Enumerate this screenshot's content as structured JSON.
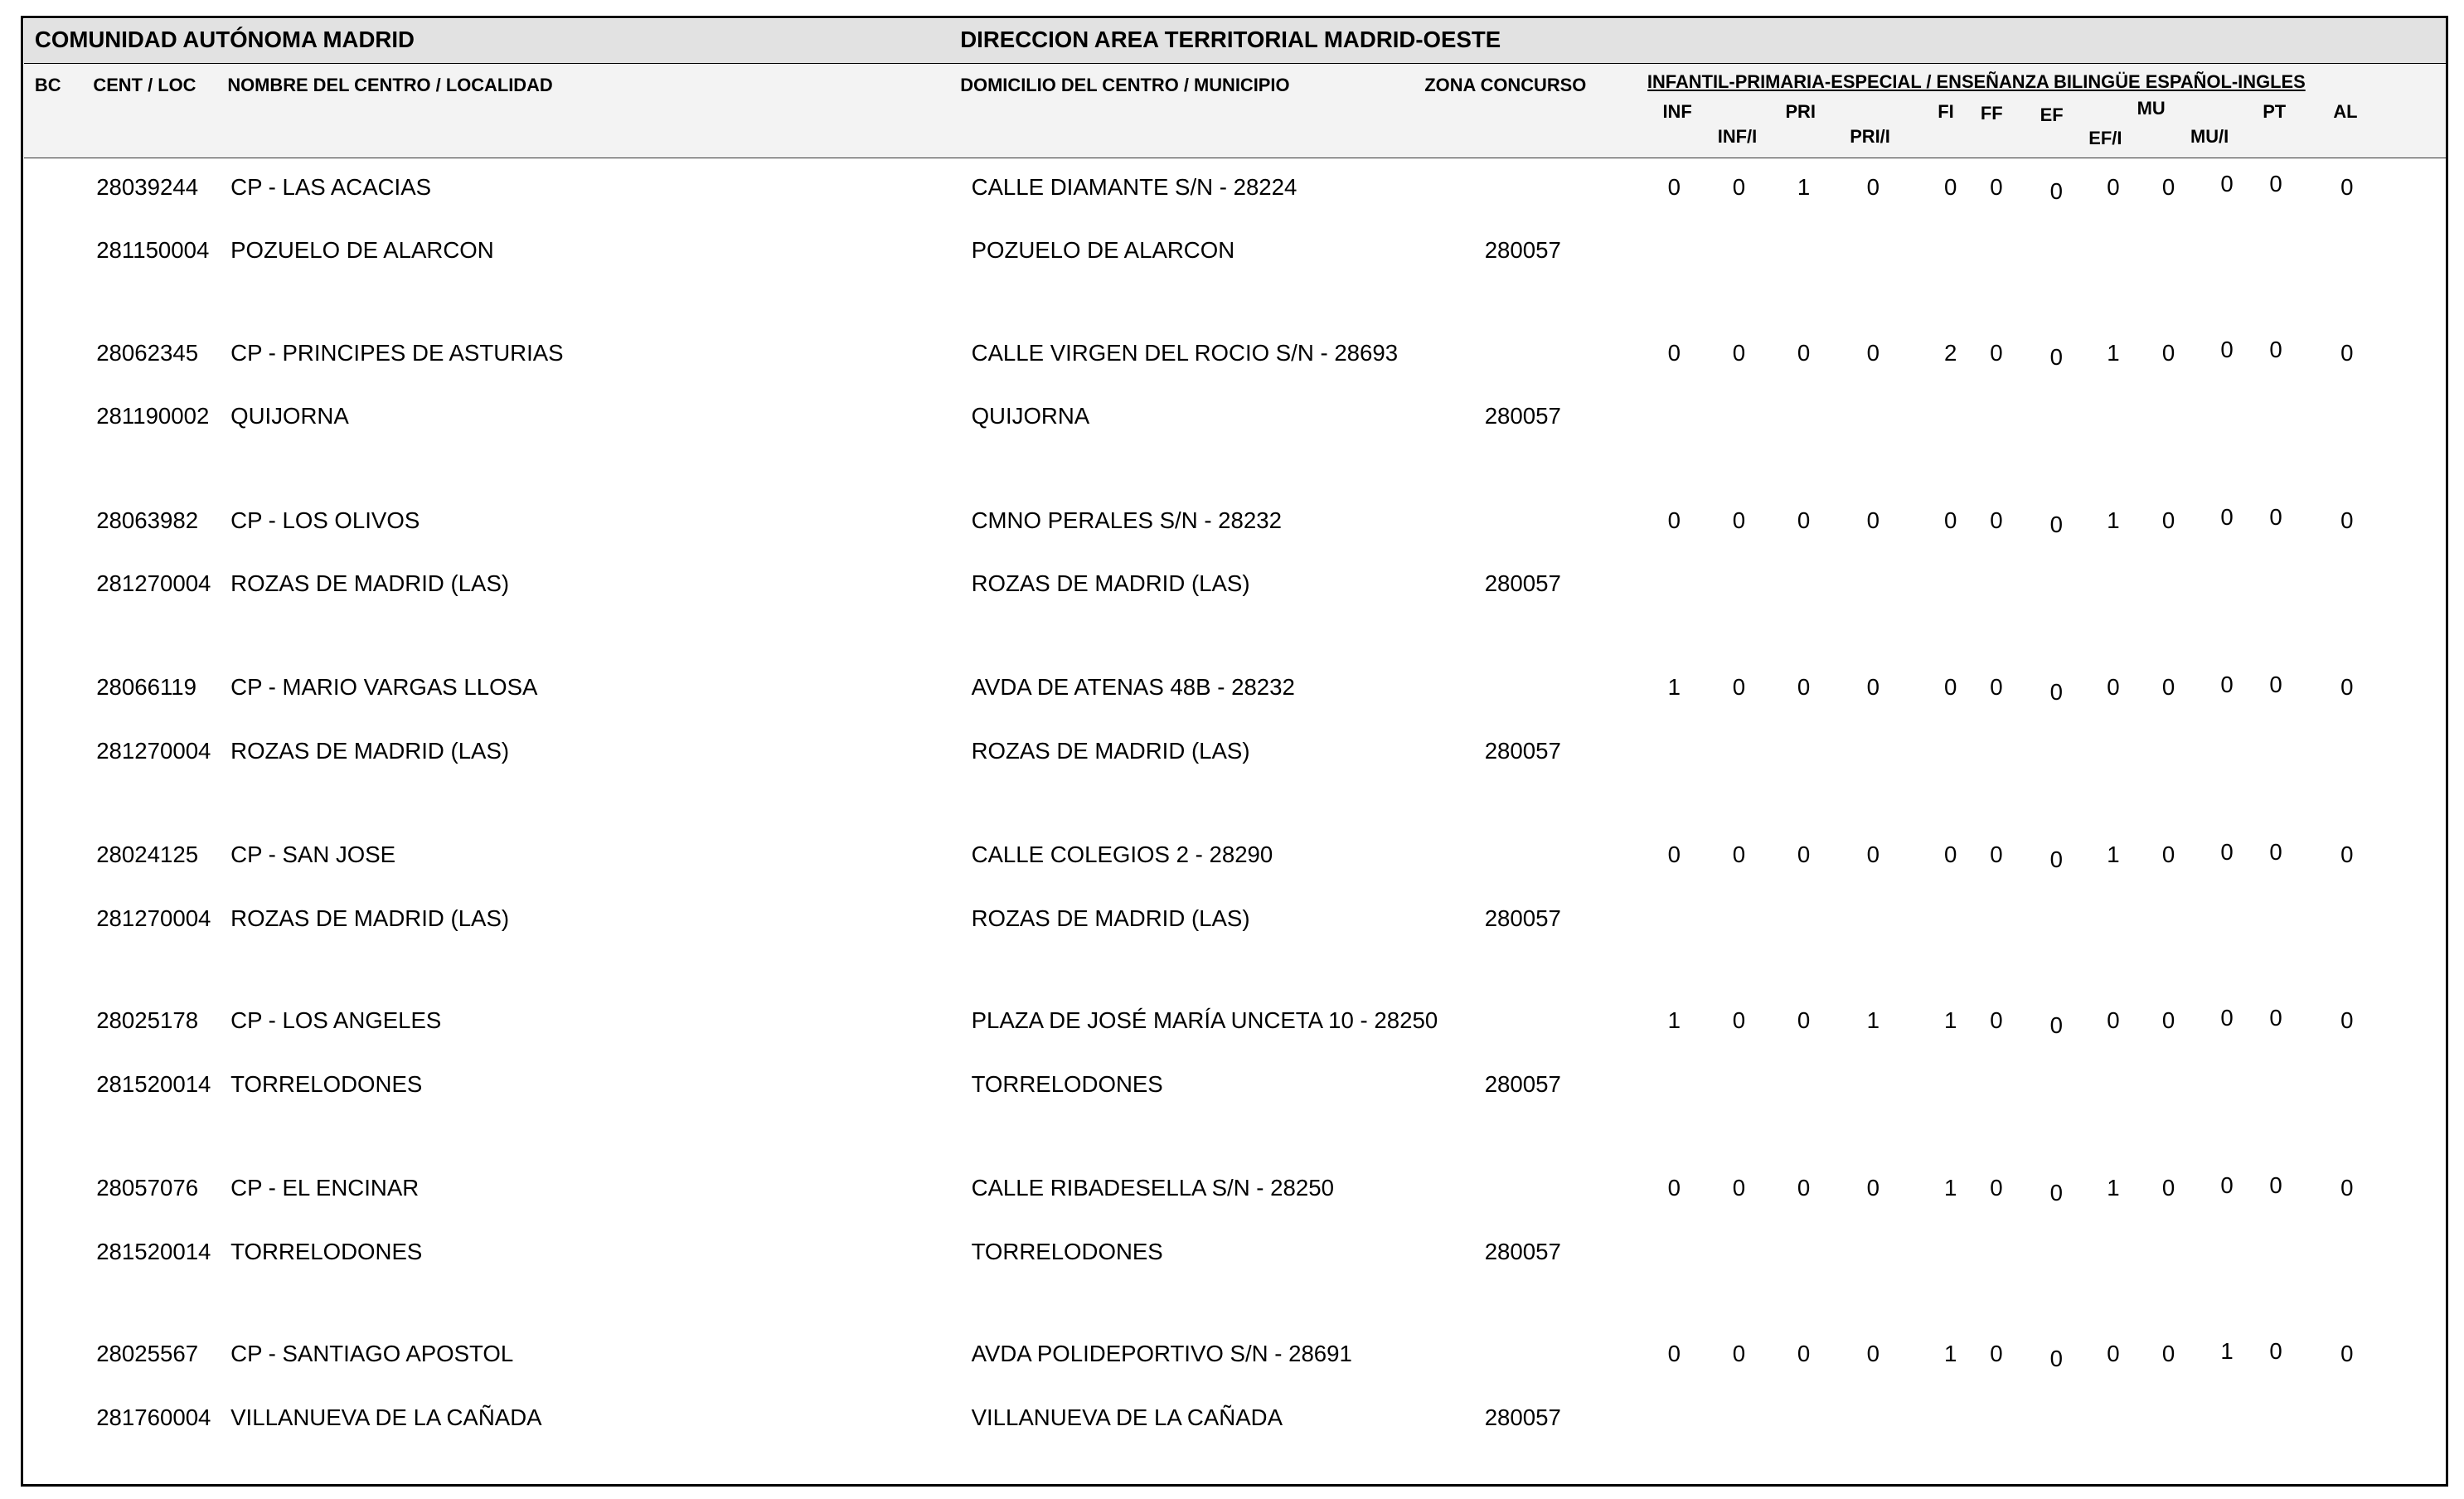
{
  "header": {
    "region": "COMUNIDAD AUTÓNOMA MADRID",
    "area": "DIRECCION AREA TERRITORIAL MADRID-OESTE"
  },
  "columns": {
    "bc": "BC",
    "cent_loc": "CENT / LOC",
    "nombre": "NOMBRE DEL CENTRO / LOCALIDAD",
    "domicilio": "DOMICILIO DEL CENTRO / MUNICIPIO",
    "zona": "ZONA CONCURSO",
    "group": "INFANTIL-PRIMARIA-ESPECIAL / ENSEÑANZA BILINGÜE ESPAÑOL-INGLES",
    "subcolumns": [
      "INF",
      "INF/I",
      "PRI",
      "PRI/I",
      "FI",
      "FF",
      "EF",
      "EF/I",
      "MU",
      "MU/I",
      "PT",
      "AL"
    ]
  },
  "rows": [
    {
      "cent": "28039244",
      "nombre": "CP - LAS ACACIAS",
      "domicilio": "CALLE DIAMANTE S/N - 28224",
      "loc": "281150004",
      "localidad": "POZUELO DE ALARCON",
      "municipio": "POZUELO DE ALARCON",
      "zona": "280057",
      "values": [
        0,
        0,
        1,
        0,
        0,
        0,
        0,
        0,
        0,
        0,
        0,
        0
      ]
    },
    {
      "cent": "28062345",
      "nombre": "CP - PRINCIPES DE ASTURIAS",
      "domicilio": "CALLE VIRGEN DEL ROCIO S/N - 28693",
      "loc": "281190002",
      "localidad": "QUIJORNA",
      "municipio": "QUIJORNA",
      "zona": "280057",
      "values": [
        0,
        0,
        0,
        0,
        2,
        0,
        0,
        1,
        0,
        0,
        0,
        0
      ]
    },
    {
      "cent": "28063982",
      "nombre": "CP - LOS OLIVOS",
      "domicilio": "CMNO PERALES S/N - 28232",
      "loc": "281270004",
      "localidad": "ROZAS DE MADRID (LAS)",
      "municipio": "ROZAS DE MADRID (LAS)",
      "zona": "280057",
      "values": [
        0,
        0,
        0,
        0,
        0,
        0,
        0,
        1,
        0,
        0,
        0,
        0
      ]
    },
    {
      "cent": "28066119",
      "nombre": "CP - MARIO VARGAS LLOSA",
      "domicilio": "AVDA DE ATENAS 48B - 28232",
      "loc": "281270004",
      "localidad": "ROZAS DE MADRID (LAS)",
      "municipio": "ROZAS DE MADRID (LAS)",
      "zona": "280057",
      "values": [
        1,
        0,
        0,
        0,
        0,
        0,
        0,
        0,
        0,
        0,
        0,
        0
      ]
    },
    {
      "cent": "28024125",
      "nombre": "CP - SAN JOSE",
      "domicilio": "CALLE COLEGIOS 2 - 28290",
      "loc": "281270004",
      "localidad": "ROZAS DE MADRID (LAS)",
      "municipio": "ROZAS DE MADRID (LAS)",
      "zona": "280057",
      "values": [
        0,
        0,
        0,
        0,
        0,
        0,
        0,
        1,
        0,
        0,
        0,
        0
      ]
    },
    {
      "cent": "28025178",
      "nombre": "CP - LOS ANGELES",
      "domicilio": "PLAZA DE JOSÉ MARÍA UNCETA 10 - 28250",
      "loc": "281520014",
      "localidad": "TORRELODONES",
      "municipio": "TORRELODONES",
      "zona": "280057",
      "values": [
        1,
        0,
        0,
        1,
        1,
        0,
        0,
        0,
        0,
        0,
        0,
        0
      ]
    },
    {
      "cent": "28057076",
      "nombre": "CP - EL ENCINAR",
      "domicilio": "CALLE RIBADESELLA S/N - 28250",
      "loc": "281520014",
      "localidad": "TORRELODONES",
      "municipio": "TORRELODONES",
      "zona": "280057",
      "values": [
        0,
        0,
        0,
        0,
        1,
        0,
        0,
        1,
        0,
        0,
        0,
        0
      ]
    },
    {
      "cent": "28025567",
      "nombre": "CP - SANTIAGO APOSTOL",
      "domicilio": "AVDA POLIDEPORTIVO S/N - 28691",
      "loc": "281760004",
      "localidad": "VILLANUEVA DE LA CAÑADA",
      "municipio": "VILLANUEVA DE LA CAÑADA",
      "zona": "280057",
      "values": [
        0,
        0,
        0,
        0,
        1,
        0,
        0,
        0,
        0,
        1,
        0,
        0
      ]
    }
  ]
}
